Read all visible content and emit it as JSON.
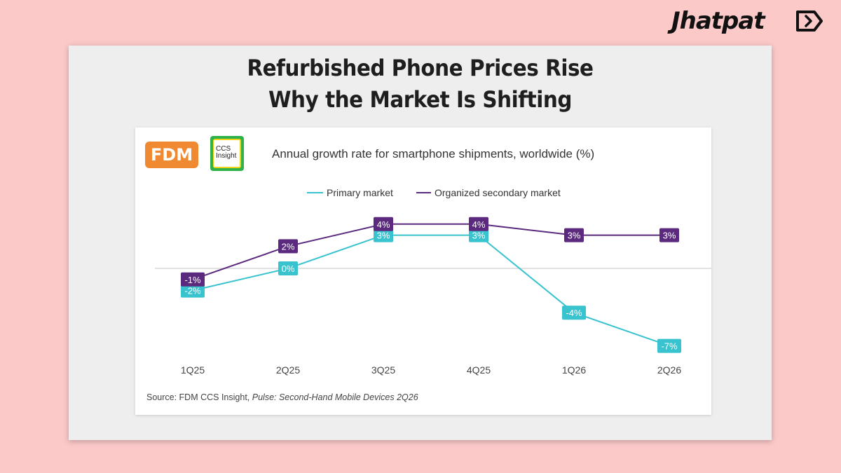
{
  "brand": {
    "name": "Jhatpat",
    "accent": "#111111"
  },
  "headline": {
    "line1": "Refurbished Phone Prices Rise",
    "line2": "Why the Market Is Shifting"
  },
  "logos": {
    "fdm": "FDM",
    "ccs_line1": "CCS",
    "ccs_line2": "Insight"
  },
  "chart_data": {
    "type": "line",
    "title": "Annual growth rate for smartphone shipments, worldwide (%)",
    "categories": [
      "1Q25",
      "2Q25",
      "3Q25",
      "4Q25",
      "1Q26",
      "2Q26"
    ],
    "series": [
      {
        "name": "Primary market",
        "values": [
          -2,
          0,
          3,
          3,
          -4,
          -7
        ],
        "labels": [
          "-2%",
          "0%",
          "3%",
          "3%",
          "-4%",
          "-7%"
        ],
        "color": "#38c3cf"
      },
      {
        "name": "Organized secondary market",
        "values": [
          -1,
          2,
          4,
          4,
          3,
          3
        ],
        "labels": [
          "-1%",
          "2%",
          "4%",
          "4%",
          "3%",
          "3%"
        ],
        "color": "#5b2a7e"
      }
    ],
    "legend_position": "top-center",
    "grid": false,
    "zero_line": true
  },
  "source": {
    "prefix": "Source: FDM CCS Insight, ",
    "title": "Pulse: Second-Hand Mobile Devices 2Q26"
  }
}
